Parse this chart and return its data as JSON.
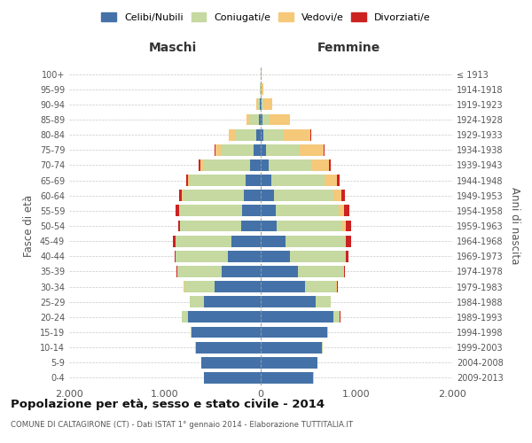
{
  "age_groups": [
    "0-4",
    "5-9",
    "10-14",
    "15-19",
    "20-24",
    "25-29",
    "30-34",
    "35-39",
    "40-44",
    "45-49",
    "50-54",
    "55-59",
    "60-64",
    "65-69",
    "70-74",
    "75-79",
    "80-84",
    "85-89",
    "90-94",
    "95-99",
    "100+"
  ],
  "birth_years": [
    "2009-2013",
    "2004-2008",
    "1999-2003",
    "1994-1998",
    "1989-1993",
    "1984-1988",
    "1979-1983",
    "1974-1978",
    "1969-1973",
    "1964-1968",
    "1959-1963",
    "1954-1958",
    "1949-1953",
    "1944-1948",
    "1939-1943",
    "1934-1938",
    "1929-1933",
    "1924-1928",
    "1919-1923",
    "1914-1918",
    "≤ 1913"
  ],
  "maschi": {
    "celibi": [
      590,
      620,
      680,
      720,
      760,
      590,
      480,
      410,
      340,
      310,
      200,
      190,
      175,
      160,
      110,
      70,
      45,
      20,
      8,
      3,
      2
    ],
    "coniugati": [
      1,
      2,
      4,
      12,
      60,
      150,
      320,
      460,
      545,
      580,
      640,
      660,
      640,
      580,
      490,
      350,
      220,
      90,
      25,
      5,
      1
    ],
    "vedovi": [
      0,
      0,
      0,
      0,
      1,
      1,
      2,
      2,
      3,
      3,
      5,
      6,
      8,
      15,
      30,
      50,
      65,
      40,
      15,
      3,
      1
    ],
    "divorziati": [
      0,
      0,
      0,
      0,
      2,
      3,
      5,
      10,
      14,
      28,
      18,
      33,
      32,
      25,
      18,
      8,
      4,
      2,
      0,
      0,
      0
    ]
  },
  "femmine": {
    "nubili": [
      550,
      590,
      640,
      690,
      760,
      570,
      460,
      390,
      310,
      255,
      170,
      155,
      140,
      115,
      80,
      55,
      30,
      15,
      6,
      4,
      2
    ],
    "coniugate": [
      1,
      2,
      4,
      14,
      65,
      158,
      330,
      475,
      570,
      620,
      680,
      660,
      620,
      550,
      460,
      350,
      210,
      80,
      22,
      5,
      1
    ],
    "vedove": [
      0,
      0,
      0,
      0,
      2,
      2,
      3,
      4,
      8,
      15,
      35,
      55,
      80,
      130,
      175,
      250,
      280,
      210,
      90,
      18,
      3
    ],
    "divorziate": [
      0,
      0,
      0,
      0,
      3,
      5,
      8,
      14,
      28,
      52,
      58,
      52,
      42,
      26,
      17,
      12,
      8,
      4,
      1,
      0,
      0
    ]
  },
  "colors": {
    "celibi": "#4472a8",
    "coniugati": "#c5d9a0",
    "vedovi": "#f5c87a",
    "divorziati": "#cc2222"
  },
  "title": "Popolazione per età, sesso e stato civile - 2014",
  "subtitle": "COMUNE DI CALTAGIRONE (CT) - Dati ISTAT 1° gennaio 2014 - Elaborazione TUTTITALIA.IT",
  "ylabel": "Fasce di età",
  "right_ylabel": "Anni di nascita",
  "xlim": 2000,
  "xlabel_maschi": "Maschi",
  "xlabel_femmine": "Femmine",
  "legend_labels": [
    "Celibi/Nubili",
    "Coniugati/e",
    "Vedovi/e",
    "Divorziati/e"
  ],
  "background_color": "#ffffff",
  "grid_color": "#bbbbbb"
}
